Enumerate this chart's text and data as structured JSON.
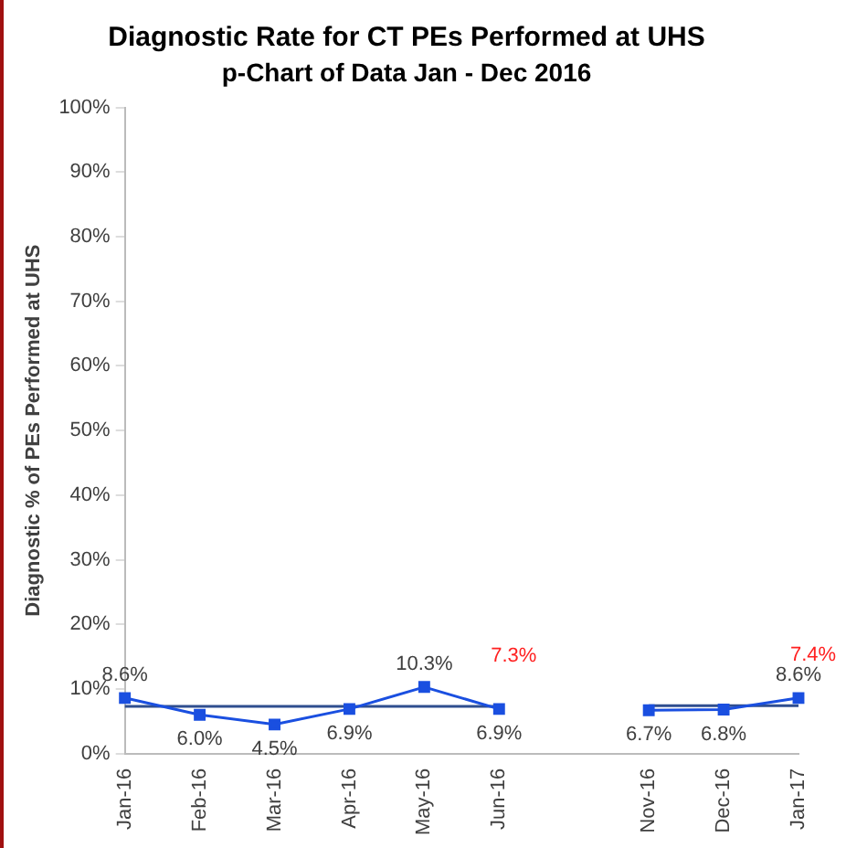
{
  "chart_data": {
    "type": "line",
    "title": "Diagnostic Rate for CT PEs Performed at UHS",
    "subtitle": "p-Chart of Data Jan - Dec 2016",
    "ylabel": "Diagnostic % of PEs Performed at UHS",
    "categories": [
      "Jan-16",
      "Feb-16",
      "Mar-16",
      "Apr-16",
      "May-16",
      "Jun-16",
      null,
      "Nov-16",
      "Dec-16",
      "Jan-17"
    ],
    "series": [
      {
        "color": "#1a4fe0",
        "values": [
          8.6,
          6.0,
          4.5,
          6.9,
          10.3,
          6.9,
          null,
          6.7,
          6.8,
          8.6
        ],
        "value_labels": [
          "8.6%",
          "6.0%",
          "4.5%",
          "6.9%",
          "10.3%",
          "6.9%",
          null,
          "6.7%",
          "6.8%",
          "8.6%"
        ],
        "marker": "square"
      },
      {
        "color": "#2f4e8f",
        "values": [
          7.3,
          7.3,
          7.3,
          7.3,
          7.3,
          7.3,
          null,
          7.4,
          7.4,
          7.4
        ],
        "value_labels": [
          null,
          null,
          null,
          null,
          null,
          "7.3%",
          null,
          null,
          null,
          "7.4%"
        ],
        "marker": "none"
      }
    ],
    "ylim": [
      0,
      100
    ],
    "yticks": [
      {
        "value": 0,
        "label": "0%"
      },
      {
        "value": 10,
        "label": "10%"
      },
      {
        "value": 20,
        "label": "20%"
      },
      {
        "value": 30,
        "label": "30%"
      },
      {
        "value": 40,
        "label": "40%"
      },
      {
        "value": 50,
        "label": "50%"
      },
      {
        "value": 60,
        "label": "60%"
      },
      {
        "value": 70,
        "label": "70%"
      },
      {
        "value": 80,
        "label": "80%"
      },
      {
        "value": 90,
        "label": "90%"
      },
      {
        "value": 100,
        "label": "100%"
      }
    ],
    "grid": false,
    "legend": false
  }
}
